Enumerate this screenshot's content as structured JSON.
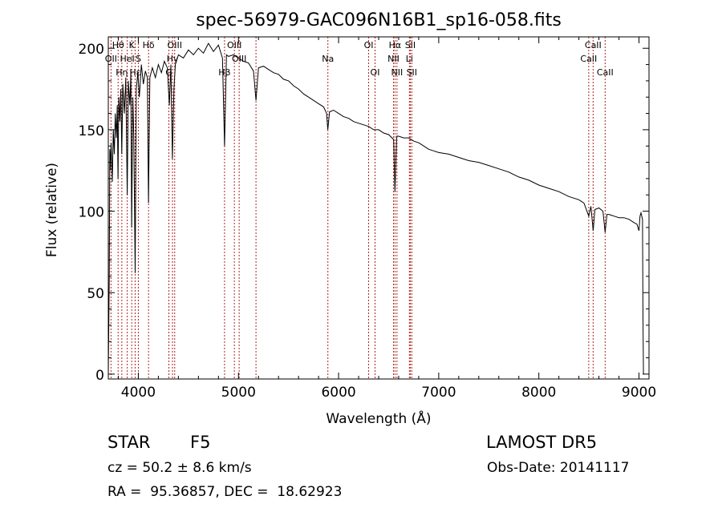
{
  "chart_data": {
    "type": "line",
    "title": "spec-56979-GAC096N16B1_sp16-058.fits",
    "xlabel": "Wavelength (Å)",
    "ylabel": "Flux (relative)",
    "xlim": [
      3700,
      9100
    ],
    "ylim": [
      -3,
      207
    ],
    "x_ticks": [
      4000,
      5000,
      6000,
      7000,
      8000,
      9000
    ],
    "y_ticks": [
      0,
      50,
      100,
      150,
      200
    ],
    "line_color": "#000000",
    "marker_color": "#b22222",
    "series": [
      {
        "points": [
          [
            3700,
            0
          ],
          [
            3710,
            60
          ],
          [
            3715,
            138
          ],
          [
            3720,
            125
          ],
          [
            3728,
            142
          ],
          [
            3740,
            118
          ],
          [
            3750,
            150
          ],
          [
            3760,
            135
          ],
          [
            3770,
            160
          ],
          [
            3780,
            145
          ],
          [
            3790,
            165
          ],
          [
            3797,
            120
          ],
          [
            3805,
            170
          ],
          [
            3815,
            155
          ],
          [
            3825,
            175
          ],
          [
            3835,
            135
          ],
          [
            3845,
            178
          ],
          [
            3860,
            160
          ],
          [
            3875,
            182
          ],
          [
            3889,
            110
          ],
          [
            3900,
            180
          ],
          [
            3915,
            165
          ],
          [
            3925,
            185
          ],
          [
            3933,
            90
          ],
          [
            3945,
            170
          ],
          [
            3955,
            145
          ],
          [
            3968,
            62
          ],
          [
            3980,
            175
          ],
          [
            3995,
            185
          ],
          [
            4010,
            170
          ],
          [
            4030,
            190
          ],
          [
            4050,
            178
          ],
          [
            4070,
            186
          ],
          [
            4090,
            182
          ],
          [
            4101,
            105
          ],
          [
            4115,
            182
          ],
          [
            4140,
            188
          ],
          [
            4170,
            182
          ],
          [
            4200,
            190
          ],
          [
            4230,
            185
          ],
          [
            4260,
            192
          ],
          [
            4290,
            188
          ],
          [
            4310,
            165
          ],
          [
            4325,
            190
          ],
          [
            4340,
            132
          ],
          [
            4355,
            175
          ],
          [
            4370,
            190
          ],
          [
            4400,
            196
          ],
          [
            4450,
            194
          ],
          [
            4500,
            199
          ],
          [
            4550,
            196
          ],
          [
            4600,
            200
          ],
          [
            4650,
            197
          ],
          [
            4700,
            203
          ],
          [
            4750,
            198
          ],
          [
            4800,
            202
          ],
          [
            4840,
            194
          ],
          [
            4861,
            140
          ],
          [
            4880,
            196
          ],
          [
            4900,
            195
          ],
          [
            4950,
            196
          ],
          [
            5000,
            194
          ],
          [
            5050,
            192
          ],
          [
            5100,
            191
          ],
          [
            5150,
            186
          ],
          [
            5175,
            168
          ],
          [
            5200,
            188
          ],
          [
            5250,
            189
          ],
          [
            5300,
            187
          ],
          [
            5350,
            185
          ],
          [
            5400,
            184
          ],
          [
            5450,
            181
          ],
          [
            5500,
            180
          ],
          [
            5550,
            177
          ],
          [
            5600,
            175
          ],
          [
            5650,
            172
          ],
          [
            5700,
            170
          ],
          [
            5750,
            168
          ],
          [
            5800,
            166
          ],
          [
            5850,
            164
          ],
          [
            5880,
            160
          ],
          [
            5892,
            150
          ],
          [
            5910,
            161
          ],
          [
            5950,
            162
          ],
          [
            6000,
            160
          ],
          [
            6050,
            158
          ],
          [
            6100,
            157
          ],
          [
            6150,
            155
          ],
          [
            6200,
            154
          ],
          [
            6250,
            153
          ],
          [
            6300,
            152
          ],
          [
            6350,
            150
          ],
          [
            6400,
            150
          ],
          [
            6450,
            148
          ],
          [
            6500,
            147
          ],
          [
            6550,
            144
          ],
          [
            6563,
            112
          ],
          [
            6580,
            146
          ],
          [
            6600,
            146
          ],
          [
            6650,
            145
          ],
          [
            6700,
            145
          ],
          [
            6750,
            143
          ],
          [
            6800,
            142
          ],
          [
            6850,
            140
          ],
          [
            6900,
            138
          ],
          [
            6950,
            137
          ],
          [
            7000,
            136
          ],
          [
            7100,
            135
          ],
          [
            7200,
            133
          ],
          [
            7300,
            131
          ],
          [
            7400,
            130
          ],
          [
            7500,
            128
          ],
          [
            7600,
            126
          ],
          [
            7700,
            124
          ],
          [
            7800,
            121
          ],
          [
            7900,
            119
          ],
          [
            8000,
            116
          ],
          [
            8100,
            114
          ],
          [
            8200,
            112
          ],
          [
            8300,
            109
          ],
          [
            8400,
            107
          ],
          [
            8450,
            105
          ],
          [
            8498,
            97
          ],
          [
            8520,
            103
          ],
          [
            8542,
            88
          ],
          [
            8560,
            101
          ],
          [
            8600,
            102
          ],
          [
            8640,
            100
          ],
          [
            8662,
            87
          ],
          [
            8680,
            98
          ],
          [
            8700,
            98
          ],
          [
            8750,
            97
          ],
          [
            8800,
            96
          ],
          [
            8850,
            96
          ],
          [
            8900,
            95
          ],
          [
            8950,
            93
          ],
          [
            8980,
            92
          ],
          [
            9000,
            88
          ],
          [
            9010,
            97
          ],
          [
            9020,
            99
          ],
          [
            9035,
            95
          ],
          [
            9040,
            35
          ],
          [
            9045,
            0
          ]
        ]
      }
    ],
    "lines": [
      {
        "wavelength": 3727,
        "label": "OII",
        "row": 2
      },
      {
        "wavelength": 3798,
        "label": "Hθ",
        "row": 1
      },
      {
        "wavelength": 3835,
        "label": "Hη",
        "row": 3
      },
      {
        "wavelength": 3889,
        "label": "HeI",
        "row": 2
      },
      {
        "wavelength": 3934,
        "label": "K",
        "row": 1
      },
      {
        "wavelength": 3968,
        "label": "Hε",
        "row": 3
      },
      {
        "wavelength": 4000,
        "label": "S",
        "row": 2
      },
      {
        "wavelength": 4102,
        "label": "Hδ",
        "row": 1
      },
      {
        "wavelength": 4305,
        "label": "G",
        "row": 3
      },
      {
        "wavelength": 4341,
        "label": "Hγ",
        "row": 2
      },
      {
        "wavelength": 4363,
        "label": "OIII",
        "row": 1
      },
      {
        "wavelength": 4861,
        "label": "Hβ",
        "row": 3
      },
      {
        "wavelength": 4959,
        "label": "OIII",
        "row": 1
      },
      {
        "wavelength": 5007,
        "label": "OIII",
        "row": 2
      },
      {
        "wavelength": 5175,
        "label": "",
        "row": 0
      },
      {
        "wavelength": 5893,
        "label": "Na",
        "row": 2
      },
      {
        "wavelength": 6300,
        "label": "OI",
        "row": 1
      },
      {
        "wavelength": 6364,
        "label": "OI",
        "row": 3
      },
      {
        "wavelength": 6548,
        "label": "NII",
        "row": 2
      },
      {
        "wavelength": 6563,
        "label": "Hα",
        "row": 1
      },
      {
        "wavelength": 6583,
        "label": "NII",
        "row": 3
      },
      {
        "wavelength": 6707,
        "label": "Li",
        "row": 2
      },
      {
        "wavelength": 6716,
        "label": "SII",
        "row": 1
      },
      {
        "wavelength": 6731,
        "label": "SII",
        "row": 3
      },
      {
        "wavelength": 8498,
        "label": "CaII",
        "row": 2
      },
      {
        "wavelength": 8542,
        "label": "CaII",
        "row": 1
      },
      {
        "wavelength": 8662,
        "label": "CaII",
        "row": 3
      }
    ]
  },
  "info": {
    "class_label": "STAR",
    "subclass": "F5",
    "survey": "LAMOST DR5",
    "cz": "cz = 50.2 ± 8.6 km/s",
    "obs_date": "Obs-Date: 20141117",
    "radec": "RA =  95.36857, DEC =  18.62923"
  }
}
